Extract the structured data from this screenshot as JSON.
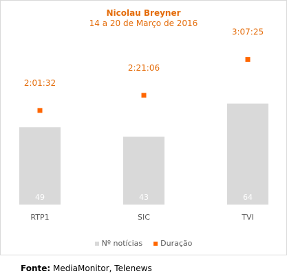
{
  "chart_data": {
    "type": "bar",
    "title": "Nicolau Breyner",
    "subtitle": "14 a 20 de Março de 2016",
    "categories": [
      "RTP1",
      "SIC",
      "TVI"
    ],
    "series": [
      {
        "name": "Nº notícias",
        "type": "bar",
        "values": [
          49,
          43,
          64
        ],
        "color": "#d9d9d9"
      },
      {
        "name": "Duração",
        "type": "scatter",
        "values": [
          "2:01:32",
          "2:21:06",
          "3:07:25"
        ],
        "values_seconds": [
          7292,
          8466,
          11245
        ],
        "color": "#ff6600"
      }
    ],
    "ylim": [
      0,
      70
    ],
    "grid": false,
    "legend": "bottom"
  },
  "source": {
    "label": "Fonte:",
    "text": " MediaMonitor, Telenews"
  }
}
